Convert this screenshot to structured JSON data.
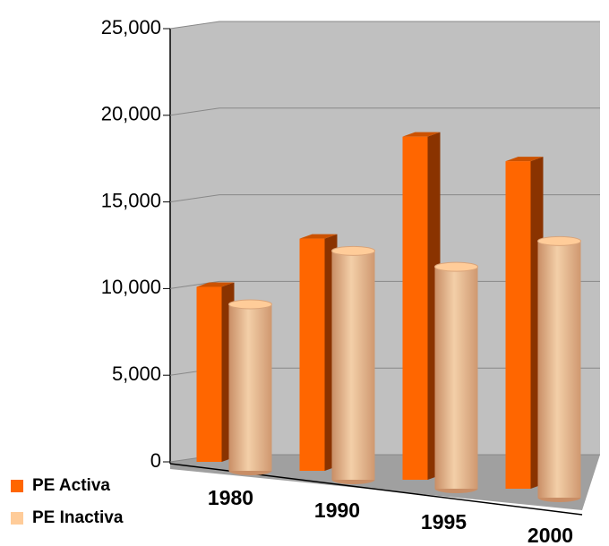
{
  "chart_data": {
    "type": "bar3d",
    "categories": [
      "1980",
      "1990",
      "1995",
      "2000"
    ],
    "series": [
      {
        "name": "PE Activa",
        "color": "#ff6600",
        "values": [
          10100,
          13400,
          19800,
          18900
        ]
      },
      {
        "name": "PE Inactiva",
        "color": "#ffcc99",
        "values": [
          9400,
          13000,
          12600,
          14600
        ]
      }
    ],
    "ylim": [
      0,
      25000
    ],
    "yticks": [
      0,
      {
        "value": 5000,
        "label": "5,000"
      },
      {
        "value": 10000,
        "label": "10,000"
      },
      {
        "value": 15000,
        "label": "15,000"
      },
      {
        "value": 20000,
        "label": "20,000"
      },
      {
        "value": 25000,
        "label": "25,000"
      }
    ],
    "grid": true,
    "legend": "bottom-left"
  }
}
